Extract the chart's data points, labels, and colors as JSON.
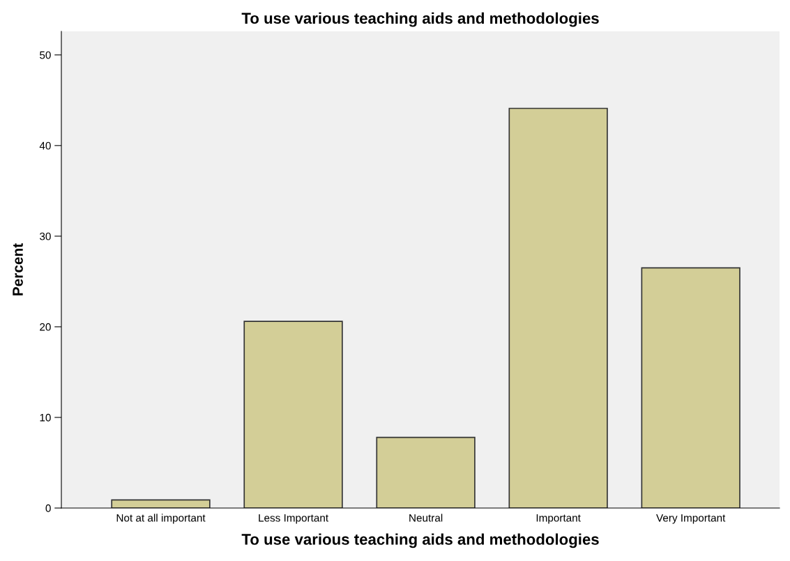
{
  "chart_data": {
    "type": "bar",
    "title": "To use various teaching aids and methodologies",
    "xlabel": "To use various teaching aids and methodologies",
    "ylabel": "Percent",
    "categories": [
      "Not at all important",
      "Less Important",
      "Neutral",
      "Important",
      "Very Important"
    ],
    "values": [
      0.9,
      20.6,
      7.8,
      44.1,
      26.5
    ],
    "color": "#d3ce97",
    "ylim": [
      0,
      52.6
    ],
    "yticks": [
      0,
      10,
      20,
      30,
      40,
      50
    ],
    "grid": false
  }
}
